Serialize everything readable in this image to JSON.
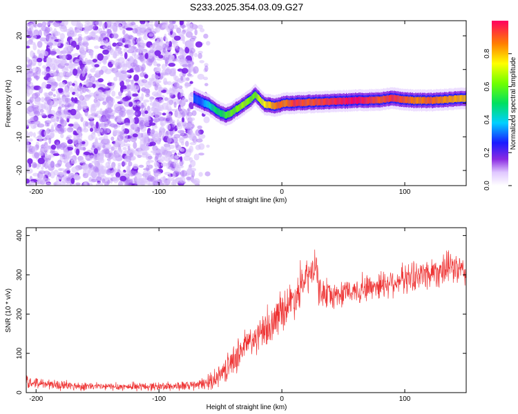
{
  "title": "S233.2025.354.03.09.G27",
  "chart_data": [
    {
      "type": "heatmap",
      "title": "S233.2025.354.03.09.G27",
      "xlabel": "Height of straight line (km)",
      "ylabel": "Frequency (Hz)",
      "xlim": [
        -208,
        150
      ],
      "ylim": [
        -24.5,
        24.5
      ],
      "xticks": [
        -200,
        -100,
        0,
        100
      ],
      "yticks": [
        -20,
        -10,
        0,
        10,
        20
      ],
      "colorbar": {
        "label": "Normalized spectral amplitude",
        "range": [
          0,
          1
        ],
        "ticks": [
          "0.0",
          "0.2",
          "0.4",
          "0.6",
          "0.8"
        ]
      },
      "noise_region": {
        "x_start": -208,
        "x_end": -72,
        "fade_end": -60
      },
      "ridge": {
        "x": [
          -72,
          -66,
          -60,
          -54,
          -50,
          -46,
          -42,
          -38,
          -34,
          -30,
          -26,
          -22,
          -18,
          -14,
          -10,
          -6,
          -2,
          2,
          10,
          20,
          40,
          60,
          80,
          90,
          100,
          110,
          120,
          130,
          150
        ],
        "frequency": [
          1.5,
          0.5,
          -0.5,
          -2,
          -3,
          -3.5,
          -3,
          -2,
          -1,
          0,
          1,
          2.5,
          1,
          -0.5,
          -0.5,
          -0.8,
          -0.5,
          0,
          0,
          0.2,
          0.5,
          0.8,
          1,
          1.5,
          1,
          0.8,
          0.8,
          1,
          1.5
        ],
        "amplitude": [
          0.3,
          0.3,
          0.4,
          0.5,
          0.5,
          0.55,
          0.6,
          0.6,
          0.65,
          0.65,
          0.6,
          0.6,
          0.7,
          0.75,
          0.8,
          0.85,
          0.9,
          0.85,
          0.95,
          0.9,
          0.95,
          1.0,
          0.9,
          0.95,
          0.9,
          0.85,
          0.9,
          0.85,
          0.8
        ]
      }
    },
    {
      "type": "line",
      "xlabel": "Height of straight line (km)",
      "ylabel": "SNR (10 * v/v)",
      "xlim": [
        -208,
        150
      ],
      "ylim": [
        0,
        420
      ],
      "xticks": [
        -200,
        -100,
        0,
        100
      ],
      "yticks": [
        0,
        100,
        200,
        300,
        400
      ],
      "color": "#ee3333",
      "trend": {
        "x": [
          -208,
          -180,
          -150,
          -120,
          -90,
          -70,
          -60,
          -50,
          -40,
          -35,
          -30,
          -20,
          -10,
          0,
          10,
          20,
          28,
          30,
          40,
          60,
          80,
          100,
          120,
          140,
          150
        ],
        "snr": [
          28,
          18,
          15,
          15,
          16,
          18,
          25,
          45,
          80,
          100,
          120,
          140,
          165,
          210,
          240,
          290,
          320,
          260,
          245,
          260,
          275,
          290,
          305,
          320,
          300
        ],
        "spread": [
          18,
          15,
          12,
          12,
          14,
          15,
          22,
          35,
          45,
          50,
          50,
          50,
          55,
          60,
          60,
          55,
          50,
          45,
          40,
          40,
          45,
          45,
          50,
          50,
          45
        ]
      }
    }
  ]
}
